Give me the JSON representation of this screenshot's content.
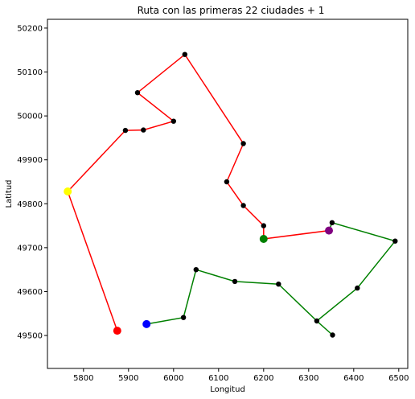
{
  "chart_data": {
    "type": "line",
    "title": "Ruta con las primeras 22 ciudades + 1",
    "xlabel": "Longitud",
    "ylabel": "Latitud",
    "xlim": [
      5720,
      6520
    ],
    "ylim": [
      49425,
      50220
    ],
    "xticks": [
      5800,
      5900,
      6000,
      6100,
      6200,
      6300,
      6400,
      6500
    ],
    "yticks": [
      49500,
      49600,
      49700,
      49800,
      49900,
      50000,
      50100,
      50200
    ],
    "grid": false,
    "series": [
      {
        "color": "#ff0000",
        "points": [
          [
            6345,
            49739
          ],
          [
            6200,
            49720
          ],
          [
            6200,
            49750
          ],
          [
            6155,
            49796
          ],
          [
            6118,
            49850
          ],
          [
            6155,
            49937
          ],
          [
            6025,
            50140
          ],
          [
            5920,
            50053
          ],
          [
            6000,
            49988
          ],
          [
            5933,
            49968
          ],
          [
            5893,
            49967
          ],
          [
            5765,
            49828
          ],
          [
            5875,
            49511
          ]
        ]
      },
      {
        "color": "#008000",
        "points": [
          [
            5940,
            49526
          ],
          [
            6022,
            49541
          ],
          [
            6050,
            49650
          ],
          [
            6136,
            49623
          ],
          [
            6233,
            49617
          ],
          [
            6318,
            49533
          ],
          [
            6353,
            49501
          ],
          [
            6318,
            49533
          ],
          [
            6408,
            49608
          ],
          [
            6492,
            49715
          ],
          [
            6352,
            49757
          ],
          [
            6345,
            49739
          ]
        ]
      }
    ],
    "city_points": [
      [
        6345,
        49739
      ],
      [
        6200,
        49750
      ],
      [
        6155,
        49796
      ],
      [
        6118,
        49850
      ],
      [
        6155,
        49937
      ],
      [
        6025,
        50140
      ],
      [
        5920,
        50053
      ],
      [
        6000,
        49988
      ],
      [
        5933,
        49968
      ],
      [
        5893,
        49967
      ],
      [
        6022,
        49541
      ],
      [
        6050,
        49650
      ],
      [
        6136,
        49623
      ],
      [
        6233,
        49617
      ],
      [
        6318,
        49533
      ],
      [
        6353,
        49501
      ],
      [
        6408,
        49608
      ],
      [
        6492,
        49715
      ],
      [
        6352,
        49757
      ]
    ],
    "highlight_points": [
      {
        "x": 5765,
        "y": 49828,
        "color": "#ffff00"
      },
      {
        "x": 5875,
        "y": 49511,
        "color": "#ff0000"
      },
      {
        "x": 5940,
        "y": 49526,
        "color": "#0000ff"
      },
      {
        "x": 6200,
        "y": 49720,
        "color": "#008000"
      },
      {
        "x": 6345,
        "y": 49739,
        "color": "#800080"
      }
    ]
  }
}
